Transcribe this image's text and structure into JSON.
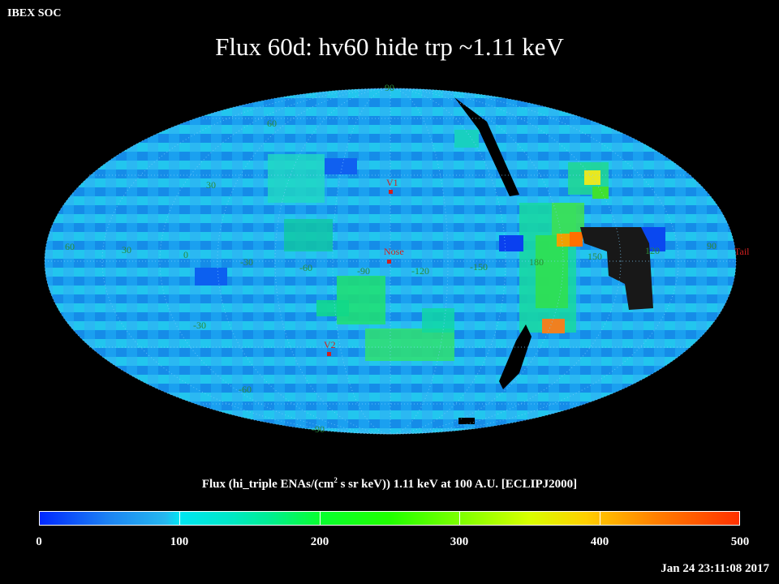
{
  "header": {
    "org": "IBEX SOC",
    "title": "Flux   60d: hv60 hide trp ~1.11 keV"
  },
  "map": {
    "projection": "mollweide",
    "longitude_labels": [
      "60",
      "30",
      "0",
      "-30",
      "-60",
      "-90",
      "-120",
      "-150",
      "180",
      "150",
      "120",
      "90"
    ],
    "latitude_labels": [
      "90",
      "60",
      "30",
      "-30",
      "-60",
      "-90"
    ],
    "markers": [
      {
        "label": "V1",
        "color": "#d02020"
      },
      {
        "label": "Nose",
        "color": "#d02020"
      },
      {
        "label": "V2",
        "color": "#d02020"
      },
      {
        "label": "Tail",
        "color": "#d02020"
      }
    ]
  },
  "colorbar": {
    "label_prefix": "Flux (hi_triple ENAs/(cm",
    "label_sup": "2",
    "label_suffix": " s sr keV))  1.11 keV at 100 A.U. [ECLIPJ2000]",
    "ticks": [
      "0",
      "100",
      "200",
      "300",
      "400",
      "500"
    ],
    "min": 0,
    "max": 500
  },
  "footer": {
    "timestamp": "Jan 24 23:11:08 2017"
  }
}
